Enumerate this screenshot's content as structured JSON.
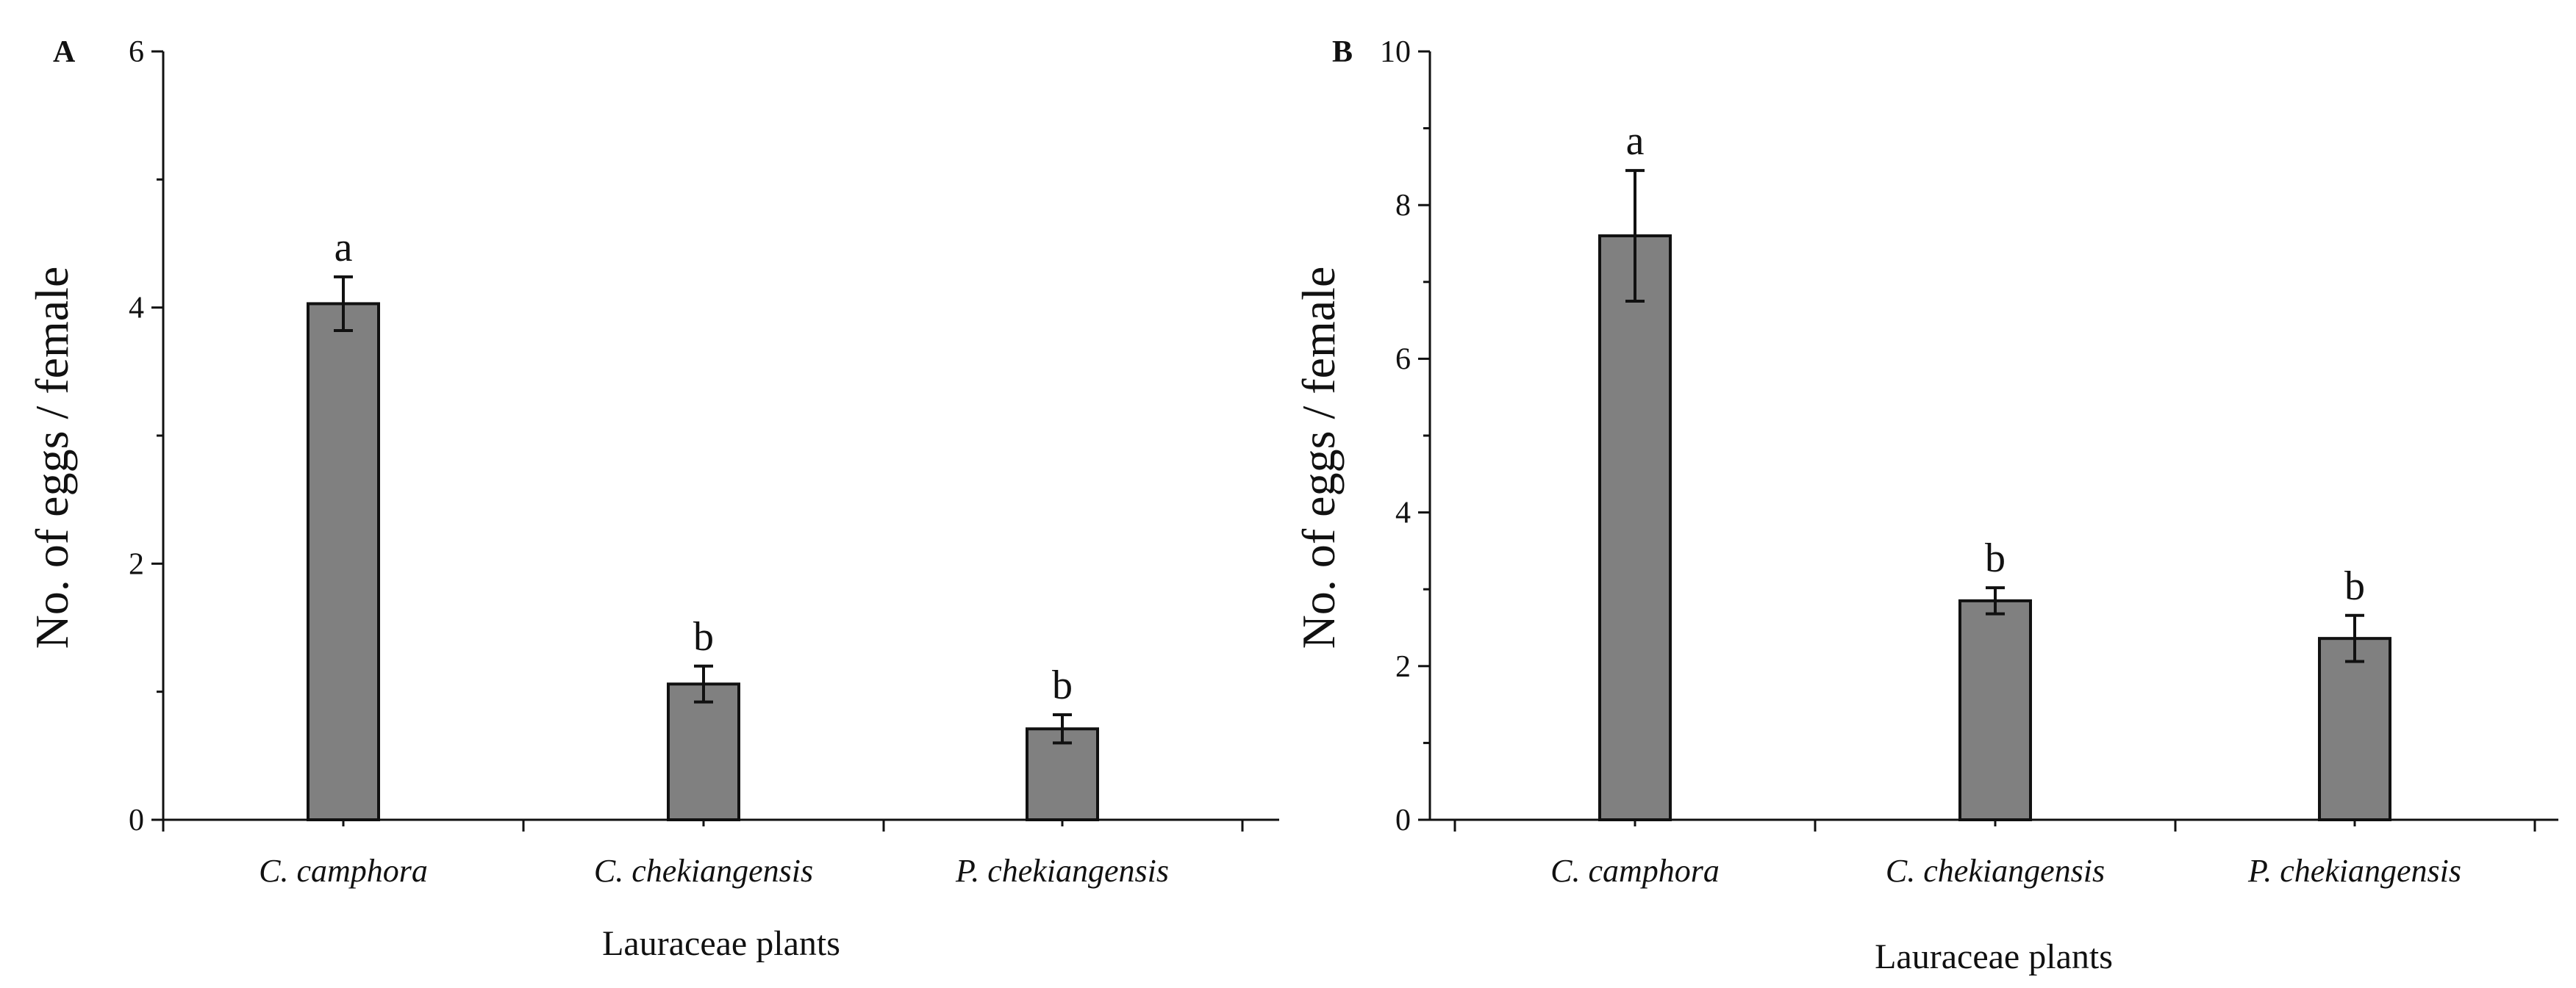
{
  "chart_data": [
    {
      "type": "bar",
      "panel_label": "A",
      "categories": [
        "C. camphora",
        "C. chekiangensis",
        "P. chekiangensis"
      ],
      "values": [
        4.03,
        1.06,
        0.71
      ],
      "error": [
        0.21,
        0.14,
        0.11
      ],
      "significance": [
        "a",
        "b",
        "b"
      ],
      "xlabel": "Lauraceae plants",
      "ylabel": "No. of eggs / female",
      "ylim": [
        0,
        6
      ],
      "yticks": [
        0,
        2,
        4,
        6
      ],
      "ytick_labels": [
        "0",
        "2",
        "4",
        "6"
      ],
      "grid": false,
      "bar_color": "#808080"
    },
    {
      "type": "bar",
      "panel_label": "B",
      "categories": [
        "C. camphora",
        "C. chekiangensis",
        "P. chekiangensis"
      ],
      "values": [
        7.6,
        2.85,
        2.36
      ],
      "error": [
        0.85,
        0.17,
        0.3
      ],
      "significance": [
        "a",
        "b",
        "b"
      ],
      "xlabel": "Lauraceae plants",
      "ylabel": "No. of eggs / female",
      "ylim": [
        0,
        10
      ],
      "yticks": [
        0,
        2,
        4,
        6,
        8,
        10
      ],
      "ytick_labels": [
        "0",
        "2",
        "4",
        "6",
        "8",
        "10"
      ],
      "grid": false,
      "bar_color": "#808080"
    }
  ]
}
